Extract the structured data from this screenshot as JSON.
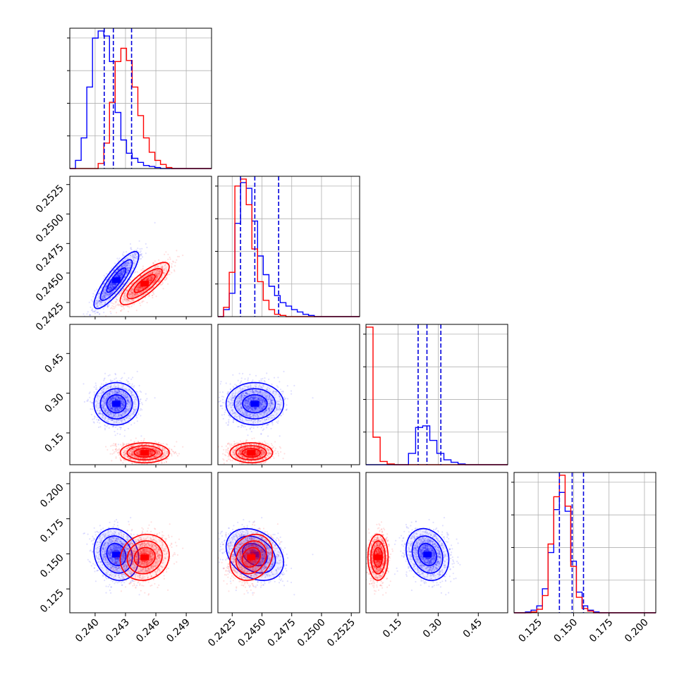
{
  "chart_data": {
    "type": "corner",
    "title": "",
    "grid": true,
    "colors": {
      "blue": "#0000ff",
      "red": "#ff0000",
      "quantile_line": "#0000dd"
    },
    "params": [
      {
        "range": [
          0.2375,
          0.2515
        ],
        "ticks": [
          0.24,
          0.243,
          0.246,
          0.249
        ],
        "tick_labels": [
          "0.240",
          "0.243",
          "0.246",
          "0.249"
        ]
      },
      {
        "range": [
          0.2413,
          0.2532
        ],
        "ticks": [
          0.2425,
          0.245,
          0.2475,
          0.25,
          0.2525
        ],
        "tick_labels": [
          "0.2425",
          "0.2450",
          "0.2475",
          "0.2500",
          "0.2525"
        ]
      },
      {
        "range": [
          0.03,
          0.56
        ],
        "ticks": [
          0.15,
          0.3,
          0.45
        ],
        "tick_labels": [
          "0.15",
          "0.30",
          "0.45"
        ]
      },
      {
        "range": [
          0.108,
          0.208
        ],
        "ticks": [
          0.125,
          0.15,
          0.175,
          0.2
        ],
        "tick_labels": [
          "0.125",
          "0.150",
          "0.175",
          "0.200"
        ]
      }
    ],
    "series": [
      {
        "color": "#0000ff",
        "mean": [
          0.2421,
          0.2444,
          0.26,
          0.1495
        ],
        "sd": [
          0.00105,
          0.00115,
          0.038,
          0.0088
        ],
        "corr": [
          [
            0,
            1,
            0.85
          ],
          [
            2,
            3,
            -0.2
          ],
          [
            1,
            3,
            -0.3
          ],
          [
            0,
            3,
            -0.15
          ]
        ],
        "quantiles": [
          [
            0.2409,
            0.2418,
            0.2436
          ],
          [
            0.2432,
            0.2444,
            0.2464
          ],
          [
            0.225,
            0.258,
            0.31
          ],
          [
            0.14,
            0.149,
            0.157
          ]
        ]
      },
      {
        "color": "#ff0000",
        "mean": [
          0.2449,
          0.2441,
          0.075,
          0.1475
        ],
        "sd": [
          0.00115,
          0.00085,
          0.018,
          0.0078
        ],
        "corr": [
          [
            0,
            1,
            0.8
          ],
          [
            1,
            3,
            0.2
          ],
          [
            0,
            3,
            0.1
          ]
        ],
        "quantiles": []
      }
    ],
    "histograms": {
      "0": {
        "blue_bins": [
          0.2375,
          0.2515,
          25
        ],
        "blue": [
          0,
          8,
          30,
          80,
          128,
          135,
          130,
          105,
          55,
          28,
          15,
          10,
          6,
          3,
          2,
          1,
          0,
          0,
          0,
          0,
          0,
          0,
          0,
          0,
          0
        ],
        "red": [
          0,
          0,
          0,
          0,
          0,
          5,
          25,
          65,
          105,
          118,
          106,
          80,
          52,
          30,
          16,
          8,
          4,
          1,
          0,
          0,
          0,
          0,
          0,
          0,
          0
        ]
      },
      "1": {
        "blue_bins": [
          0.2413,
          0.2532,
          25
        ],
        "blue": [
          0,
          6,
          20,
          80,
          115,
          110,
          82,
          52,
          36,
          26,
          18,
          12,
          9,
          6,
          4,
          2,
          1,
          0,
          0,
          0,
          0,
          0,
          0,
          0,
          0
        ],
        "red": [
          0,
          8,
          38,
          112,
          118,
          96,
          58,
          30,
          14,
          6,
          2,
          1,
          0,
          0,
          0,
          0,
          0,
          0,
          0,
          0,
          0,
          0,
          0,
          0,
          0
        ]
      },
      "2": {
        "blue_bins": [
          0.03,
          0.56,
          20
        ],
        "blue": [
          0,
          0,
          0,
          0,
          0,
          0,
          14,
          46,
          48,
          30,
          14,
          6,
          3,
          1,
          0,
          0,
          0,
          0,
          0,
          0
        ],
        "red": [
          170,
          34,
          4,
          1,
          0,
          0,
          0,
          0,
          0,
          0,
          0,
          0,
          0,
          0,
          0,
          0,
          0,
          0,
          0,
          0
        ]
      },
      "3": {
        "blue_bins": [
          0.108,
          0.208,
          25
        ],
        "blue": [
          0,
          0,
          1,
          3,
          8,
          28,
          70,
          120,
          140,
          118,
          60,
          24,
          8,
          3,
          1,
          0,
          0,
          0,
          0,
          0,
          0,
          0,
          0,
          0,
          0
        ],
        "red": [
          0,
          0,
          0,
          1,
          4,
          20,
          80,
          135,
          160,
          124,
          54,
          18,
          5,
          2,
          0,
          0,
          0,
          0,
          0,
          0,
          0,
          0,
          0,
          0,
          0
        ]
      }
    }
  }
}
